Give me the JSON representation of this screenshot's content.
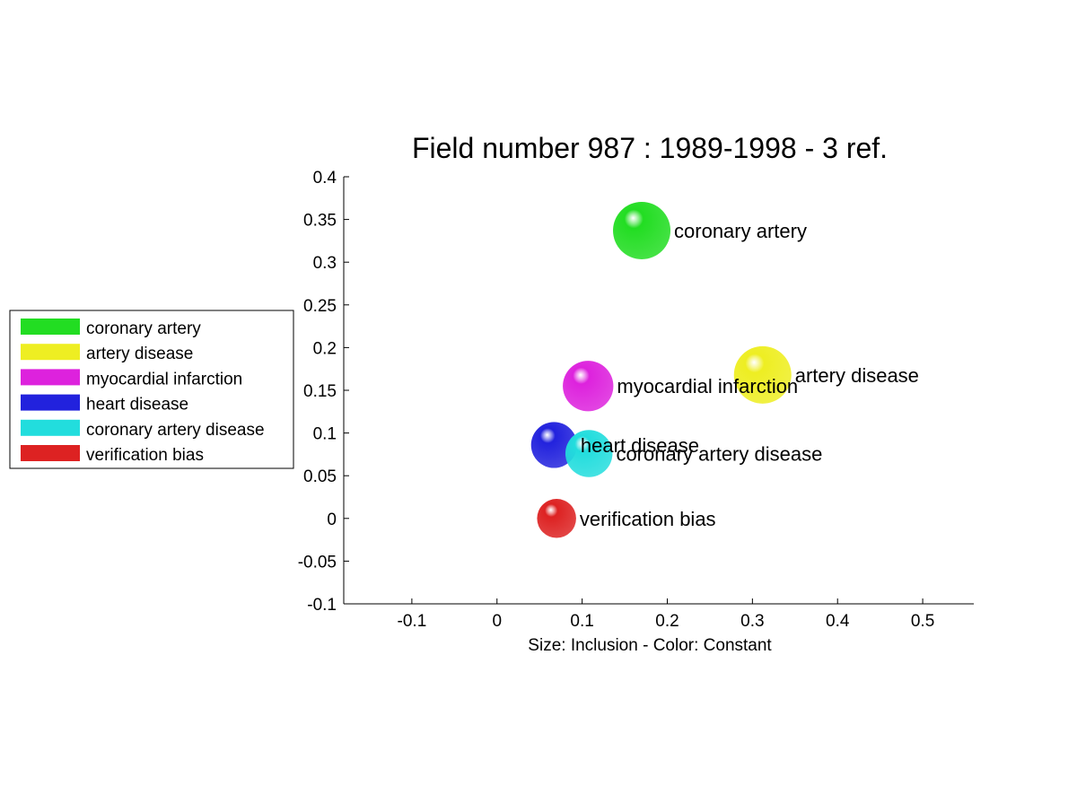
{
  "chart_data": {
    "type": "scatter",
    "title": "Field number 987 : 1989-1998  - 3 ref.",
    "xlabel": "Size: Inclusion - Color: Constant",
    "ylabel": "",
    "xlim": [
      -0.18,
      0.56
    ],
    "ylim": [
      -0.1,
      0.4
    ],
    "xticks": [
      -0.1,
      0,
      0.1,
      0.2,
      0.3,
      0.4,
      0.5
    ],
    "xtick_labels": [
      "-0.1",
      "0",
      "0.1",
      "0.2",
      "0.3",
      "0.4",
      "0.5"
    ],
    "yticks": [
      -0.1,
      -0.05,
      0,
      0.05,
      0.1,
      0.15,
      0.2,
      0.25,
      0.3,
      0.35,
      0.4
    ],
    "ytick_labels": [
      "-0.1",
      "-0.05",
      "0",
      "0.05",
      "0.1",
      "0.15",
      "0.2",
      "0.25",
      "0.3",
      "0.35",
      "0.4"
    ],
    "grid": false,
    "legend_position": "left",
    "series": [
      {
        "name": "coronary artery",
        "x": 0.17,
        "y": 0.337,
        "size": 1.0,
        "color": "#22dd22"
      },
      {
        "name": "artery disease",
        "x": 0.312,
        "y": 0.168,
        "size": 1.0,
        "color": "#eeee22"
      },
      {
        "name": "myocardial infarction",
        "x": 0.107,
        "y": 0.155,
        "size": 0.88,
        "color": "#dd22dd"
      },
      {
        "name": "heart disease",
        "x": 0.067,
        "y": 0.086,
        "size": 0.8,
        "color": "#2222dd"
      },
      {
        "name": "coronary artery disease",
        "x": 0.108,
        "y": 0.076,
        "size": 0.82,
        "color": "#22dddd"
      },
      {
        "name": "verification bias",
        "x": 0.07,
        "y": 0.0,
        "size": 0.68,
        "color": "#dd2222"
      }
    ]
  }
}
